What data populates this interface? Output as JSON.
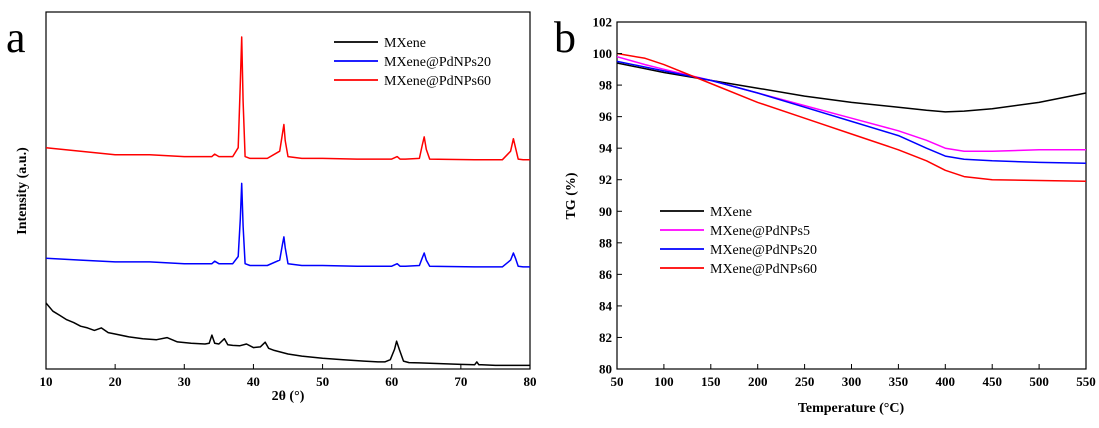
{
  "chart_data": [
    {
      "panel_label": "a",
      "type": "line",
      "xlabel": "2θ (°)",
      "ylabel": "Intensity (a.u.)",
      "xlim": [
        10,
        80
      ],
      "ylim": [
        0,
        10
      ],
      "xticks": [
        10,
        20,
        30,
        40,
        50,
        60,
        70,
        80
      ],
      "yticks": [],
      "grid": false,
      "legend_position": "top-right",
      "series": [
        {
          "name": "MXene",
          "color": "#000000",
          "x": [
            10,
            11,
            12,
            13,
            14,
            15,
            16,
            17,
            18,
            19,
            20,
            22,
            24,
            26,
            27.5,
            29,
            31,
            33,
            33.6,
            34,
            34.4,
            35,
            35.8,
            36.3,
            37,
            38,
            39,
            40,
            41,
            41.7,
            42.2,
            43,
            45,
            47,
            50,
            53,
            56,
            58,
            59,
            59.8,
            60.4,
            60.7,
            61.1,
            61.7,
            62.5,
            64,
            67,
            70,
            72,
            72.3,
            72.6,
            73,
            75,
            78,
            80
          ],
          "y": [
            1.85,
            1.62,
            1.5,
            1.38,
            1.3,
            1.2,
            1.15,
            1.08,
            1.15,
            1.02,
            0.98,
            0.9,
            0.85,
            0.82,
            0.88,
            0.76,
            0.72,
            0.7,
            0.72,
            0.95,
            0.72,
            0.7,
            0.85,
            0.68,
            0.66,
            0.65,
            0.7,
            0.6,
            0.62,
            0.75,
            0.58,
            0.52,
            0.42,
            0.36,
            0.3,
            0.26,
            0.22,
            0.2,
            0.2,
            0.26,
            0.55,
            0.78,
            0.55,
            0.22,
            0.18,
            0.17,
            0.15,
            0.13,
            0.12,
            0.2,
            0.12,
            0.12,
            0.1,
            0.1,
            0.1
          ]
        },
        {
          "name": "MXene@PdNPs20",
          "color": "#0000ff",
          "x": [
            10,
            15,
            20,
            25,
            30,
            33,
            34,
            34.4,
            35,
            37,
            37.8,
            38.1,
            38.3,
            38.5,
            38.8,
            39.5,
            42,
            43.8,
            44.2,
            44.4,
            44.6,
            45,
            47,
            50,
            55,
            60,
            60.8,
            61.2,
            62,
            64,
            64.4,
            64.7,
            65,
            65.5,
            68,
            72,
            76,
            77.2,
            77.6,
            77.9,
            78.3,
            79,
            80
          ],
          "y": [
            3.1,
            3.05,
            3.0,
            3.0,
            2.95,
            2.95,
            2.95,
            3.02,
            2.95,
            2.95,
            3.15,
            4.2,
            5.2,
            4.0,
            2.95,
            2.9,
            2.9,
            3.05,
            3.5,
            3.7,
            3.4,
            2.95,
            2.9,
            2.9,
            2.88,
            2.88,
            2.95,
            2.88,
            2.88,
            2.9,
            3.1,
            3.25,
            3.05,
            2.88,
            2.87,
            2.86,
            2.86,
            3.05,
            3.25,
            3.1,
            2.88,
            2.86,
            2.86
          ]
        },
        {
          "name": "MXene@PdNPs60",
          "color": "#ff0000",
          "x": [
            10,
            15,
            20,
            25,
            30,
            33,
            34,
            34.4,
            35,
            37,
            37.8,
            38.1,
            38.3,
            38.5,
            38.8,
            39.5,
            42,
            43.8,
            44.2,
            44.4,
            44.6,
            45,
            47,
            50,
            55,
            60,
            60.8,
            61.2,
            62,
            64,
            64.4,
            64.7,
            65,
            65.5,
            68,
            72,
            76,
            77.2,
            77.6,
            77.9,
            78.3,
            79,
            80
          ],
          "y": [
            6.2,
            6.1,
            6.0,
            6.0,
            5.95,
            5.95,
            5.95,
            6.02,
            5.95,
            5.95,
            6.2,
            8.0,
            9.3,
            7.5,
            5.95,
            5.9,
            5.9,
            6.1,
            6.6,
            6.85,
            6.4,
            5.95,
            5.9,
            5.9,
            5.88,
            5.88,
            5.95,
            5.88,
            5.88,
            5.9,
            6.25,
            6.5,
            6.15,
            5.88,
            5.87,
            5.86,
            5.86,
            6.1,
            6.45,
            6.2,
            5.88,
            5.86,
            5.86
          ]
        }
      ]
    },
    {
      "panel_label": "b",
      "type": "line",
      "xlabel": "Temperature (°C)",
      "ylabel": "TG (%)",
      "xlim": [
        50,
        550
      ],
      "ylim": [
        80,
        102
      ],
      "xticks": [
        50,
        100,
        150,
        200,
        250,
        300,
        350,
        400,
        450,
        500,
        550
      ],
      "yticks": [
        80,
        82,
        84,
        86,
        88,
        90,
        92,
        94,
        96,
        98,
        100,
        102
      ],
      "grid": false,
      "legend_position": "center-left",
      "series": [
        {
          "name": "MXene",
          "color": "#000000",
          "x": [
            50,
            100,
            150,
            200,
            250,
            300,
            350,
            380,
            400,
            420,
            450,
            500,
            550
          ],
          "y": [
            99.4,
            98.8,
            98.3,
            97.8,
            97.3,
            96.9,
            96.6,
            96.4,
            96.3,
            96.35,
            96.5,
            96.9,
            97.5
          ]
        },
        {
          "name": "MXene@PdNPs5",
          "color": "#ff00ff",
          "x": [
            50,
            80,
            100,
            150,
            200,
            250,
            300,
            350,
            380,
            400,
            420,
            450,
            500,
            550
          ],
          "y": [
            99.8,
            99.3,
            99.0,
            98.3,
            97.5,
            96.7,
            95.9,
            95.1,
            94.5,
            94.0,
            93.8,
            93.8,
            93.9,
            93.9
          ]
        },
        {
          "name": "MXene@PdNPs20",
          "color": "#0000ff",
          "x": [
            50,
            100,
            150,
            200,
            250,
            300,
            350,
            380,
            400,
            420,
            450,
            500,
            550
          ],
          "y": [
            99.5,
            98.9,
            98.3,
            97.5,
            96.6,
            95.7,
            94.8,
            94.0,
            93.5,
            93.3,
            93.2,
            93.1,
            93.05
          ]
        },
        {
          "name": "MXene@PdNPs60",
          "color": "#ff0000",
          "x": [
            50,
            80,
            100,
            150,
            200,
            250,
            300,
            350,
            380,
            400,
            420,
            450,
            500,
            550
          ],
          "y": [
            100.0,
            99.7,
            99.3,
            98.1,
            96.9,
            95.9,
            94.9,
            93.9,
            93.2,
            92.6,
            92.2,
            92.0,
            91.95,
            91.9
          ]
        }
      ]
    }
  ]
}
